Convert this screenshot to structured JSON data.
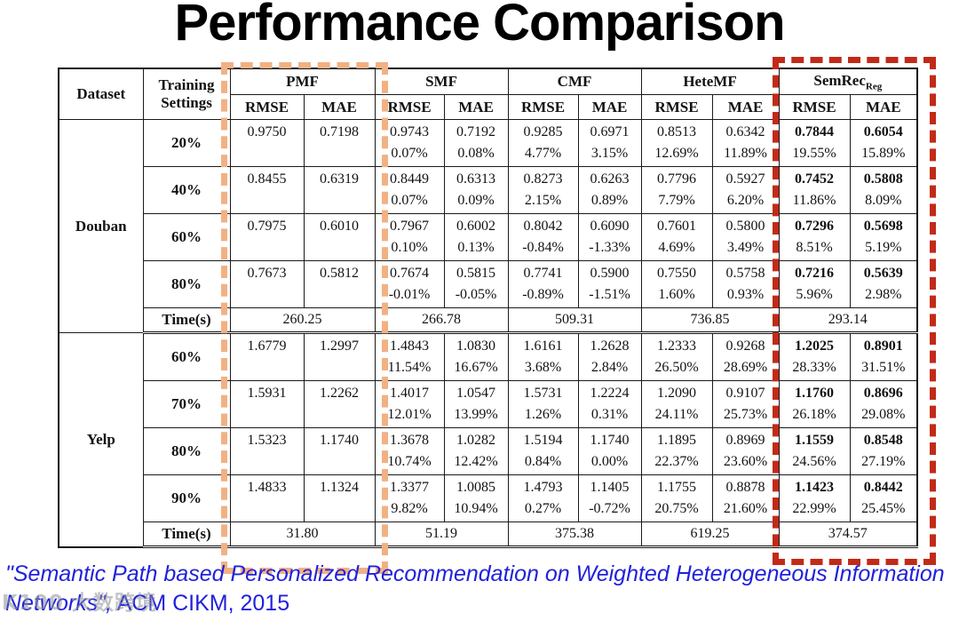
{
  "title": "Performance Comparison",
  "citation": {
    "quote": "\"Semantic Path based Personalized Recommendation on Weighted Heterogeneous Information Networks\",",
    "venue": "ACM CIKM, 2015"
  },
  "watermark": {
    "logo": "K100",
    "text": "大数跨境"
  },
  "colors": {
    "pmf_box": "#F2B183",
    "semrec_box": "#C22A18",
    "citation_blue": "#2121DC",
    "table_ink": "#121212"
  },
  "table": {
    "headers": {
      "dataset": "Dataset",
      "training": "Training Settings",
      "metrics": [
        "RMSE",
        "MAE"
      ],
      "methods": [
        {
          "label": "PMF"
        },
        {
          "label": "SMF"
        },
        {
          "label": "CMF"
        },
        {
          "label": "HeteMF"
        },
        {
          "label": "SemRec",
          "sub": "Reg"
        }
      ]
    },
    "time_label": "Time(s)",
    "sections": [
      {
        "dataset": "Douban",
        "rows": [
          {
            "setting": "20%",
            "cells": [
              [
                "0.9750",
                ""
              ],
              [
                "0.7198",
                ""
              ],
              [
                "0.9743",
                "0.07%"
              ],
              [
                "0.7192",
                "0.08%"
              ],
              [
                "0.9285",
                "4.77%"
              ],
              [
                "0.6971",
                "3.15%"
              ],
              [
                "0.8513",
                "12.69%"
              ],
              [
                "0.6342",
                "11.89%"
              ],
              [
                "0.7844",
                "19.55%"
              ],
              [
                "0.6054",
                "15.89%"
              ]
            ]
          },
          {
            "setting": "40%",
            "cells": [
              [
                "0.8455",
                ""
              ],
              [
                "0.6319",
                ""
              ],
              [
                "0.8449",
                "0.07%"
              ],
              [
                "0.6313",
                "0.09%"
              ],
              [
                "0.8273",
                "2.15%"
              ],
              [
                "0.6263",
                "0.89%"
              ],
              [
                "0.7796",
                "7.79%"
              ],
              [
                "0.5927",
                "6.20%"
              ],
              [
                "0.7452",
                "11.86%"
              ],
              [
                "0.5808",
                "8.09%"
              ]
            ]
          },
          {
            "setting": "60%",
            "cells": [
              [
                "0.7975",
                ""
              ],
              [
                "0.6010",
                ""
              ],
              [
                "0.7967",
                "0.10%"
              ],
              [
                "0.6002",
                "0.13%"
              ],
              [
                "0.8042",
                "-0.84%"
              ],
              [
                "0.6090",
                "-1.33%"
              ],
              [
                "0.7601",
                "4.69%"
              ],
              [
                "0.5800",
                "3.49%"
              ],
              [
                "0.7296",
                "8.51%"
              ],
              [
                "0.5698",
                "5.19%"
              ]
            ]
          },
          {
            "setting": "80%",
            "cells": [
              [
                "0.7673",
                ""
              ],
              [
                "0.5812",
                ""
              ],
              [
                "0.7674",
                "-0.01%"
              ],
              [
                "0.5815",
                "-0.05%"
              ],
              [
                "0.7741",
                "-0.89%"
              ],
              [
                "0.5900",
                "-1.51%"
              ],
              [
                "0.7550",
                "1.60%"
              ],
              [
                "0.5758",
                "0.93%"
              ],
              [
                "0.7216",
                "5.96%"
              ],
              [
                "0.5639",
                "2.98%"
              ]
            ]
          }
        ],
        "times": [
          "260.25",
          "266.78",
          "509.31",
          "736.85",
          "293.14"
        ]
      },
      {
        "dataset": "Yelp",
        "rows": [
          {
            "setting": "60%",
            "cells": [
              [
                "1.6779",
                ""
              ],
              [
                "1.2997",
                ""
              ],
              [
                "1.4843",
                "11.54%"
              ],
              [
                "1.0830",
                "16.67%"
              ],
              [
                "1.6161",
                "3.68%"
              ],
              [
                "1.2628",
                "2.84%"
              ],
              [
                "1.2333",
                "26.50%"
              ],
              [
                "0.9268",
                "28.69%"
              ],
              [
                "1.2025",
                "28.33%"
              ],
              [
                "0.8901",
                "31.51%"
              ]
            ]
          },
          {
            "setting": "70%",
            "cells": [
              [
                "1.5931",
                ""
              ],
              [
                "1.2262",
                ""
              ],
              [
                "1.4017",
                "12.01%"
              ],
              [
                "1.0547",
                "13.99%"
              ],
              [
                "1.5731",
                "1.26%"
              ],
              [
                "1.2224",
                "0.31%"
              ],
              [
                "1.2090",
                "24.11%"
              ],
              [
                "0.9107",
                "25.73%"
              ],
              [
                "1.1760",
                "26.18%"
              ],
              [
                "0.8696",
                "29.08%"
              ]
            ]
          },
          {
            "setting": "80%",
            "cells": [
              [
                "1.5323",
                ""
              ],
              [
                "1.1740",
                ""
              ],
              [
                "1.3678",
                "10.74%"
              ],
              [
                "1.0282",
                "12.42%"
              ],
              [
                "1.5194",
                "0.84%"
              ],
              [
                "1.1740",
                "0.00%"
              ],
              [
                "1.1895",
                "22.37%"
              ],
              [
                "0.8969",
                "23.60%"
              ],
              [
                "1.1559",
                "24.56%"
              ],
              [
                "0.8548",
                "27.19%"
              ]
            ]
          },
          {
            "setting": "90%",
            "cells": [
              [
                "1.4833",
                ""
              ],
              [
                "1.1324",
                ""
              ],
              [
                "1.3377",
                "9.82%"
              ],
              [
                "1.0085",
                "10.94%"
              ],
              [
                "1.4793",
                "0.27%"
              ],
              [
                "1.1405",
                "-0.72%"
              ],
              [
                "1.1755",
                "20.75%"
              ],
              [
                "0.8878",
                "21.60%"
              ],
              [
                "1.1423",
                "22.99%"
              ],
              [
                "0.8442",
                "25.45%"
              ]
            ]
          }
        ],
        "times": [
          "31.80",
          "51.19",
          "375.38",
          "619.25",
          "374.57"
        ]
      }
    ]
  }
}
